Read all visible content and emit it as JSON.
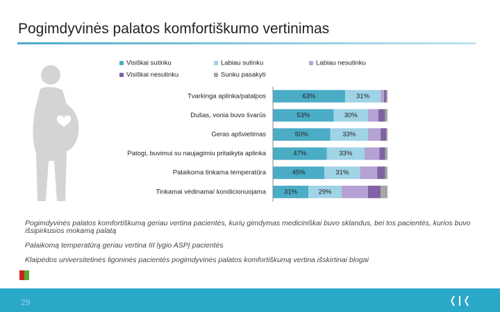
{
  "title": "Pogimdyvinės palatos komfortiškumo vertinimas",
  "chart_data": {
    "type": "stacked-barh",
    "categories": [
      "Tvarkinga aplinka/patalpos",
      "Dušas, vonia buvo švarūs",
      "Geras apšvietimas",
      "Patogi, buvimui su naujagimiu pritaikyta aplinka",
      "Palaikoma tinkama temperatūra",
      "Tinkamai vėdinama/ kondicionuojama"
    ],
    "series": [
      {
        "name": "Visiškai sutinku",
        "color": "#4bacc6",
        "values": [
          63,
          53,
          50,
          47,
          45,
          31
        ],
        "value_labels": [
          "63%",
          "53%",
          "50%",
          "47%",
          "45%",
          "31%"
        ]
      },
      {
        "name": "Labiau sutinku",
        "color": "#9fd3e6",
        "values": [
          31,
          30,
          33,
          33,
          31,
          29
        ],
        "value_labels": [
          "31%",
          "30%",
          "33%",
          "33%",
          "31%",
          "29%"
        ]
      },
      {
        "name": "Labiau nesutinku",
        "color": "#b3a2d3",
        "values": [
          3,
          9,
          11,
          13,
          15,
          23
        ]
      },
      {
        "name": "Visiškai nesutinku",
        "color": "#7f62a3",
        "values": [
          2,
          6,
          5,
          5,
          7,
          11
        ]
      },
      {
        "name": "Sunku pasakyti",
        "color": "#a6a6a6",
        "values": [
          1,
          2,
          1,
          2,
          2,
          6
        ]
      }
    ],
    "xlim": [
      0,
      100
    ]
  },
  "notes": [
    "Pogimdyvinės palatos komfortiškumą geriau vertina pacientės, kurių gimdymas mediciniškai buvo sklandus, bei tos pacientės, kurios buvo išsipirkusios mokamą palatą",
    "Palaikomą temperatūrą geriau vertina III lygio ASPĮ pacientės",
    "Klaipėdos universitetinės ligoninės pacientės pogimdyvinės palatos komfortiškumą vertina išskirtinai blogai"
  ],
  "page_number": "29"
}
